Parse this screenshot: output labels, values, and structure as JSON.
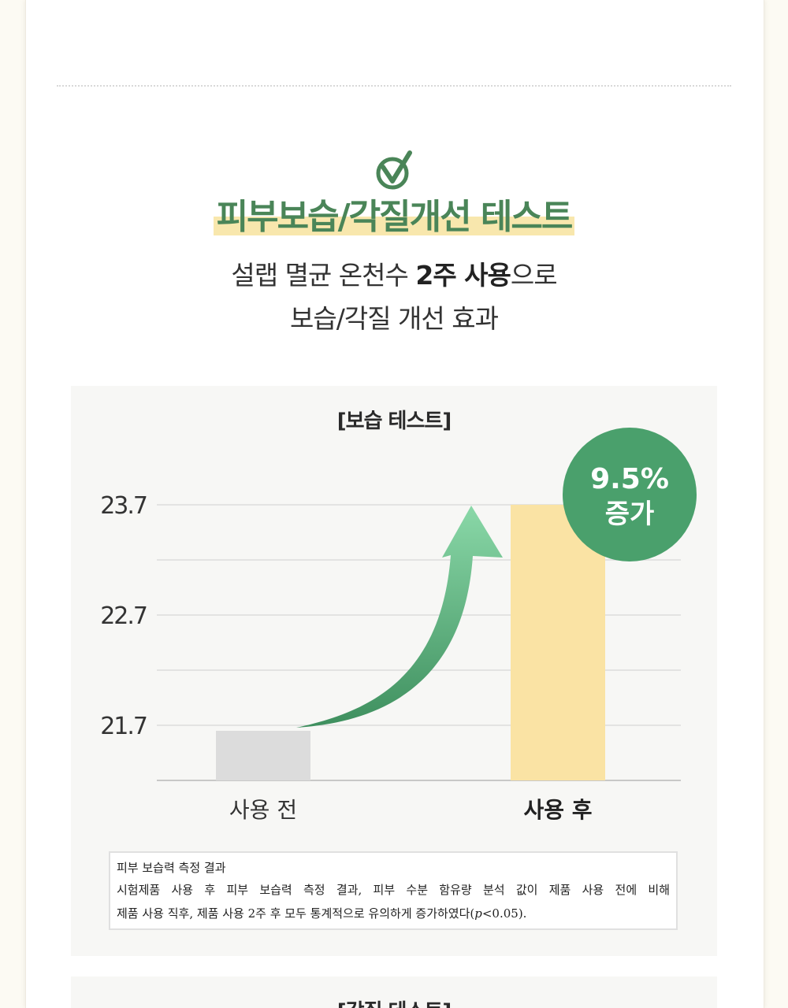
{
  "headline": "피부보습/각질개선 테스트",
  "subtitle": {
    "line1_pre": "설랩 멸균 온천수 ",
    "line1_bold": "2주 사용",
    "line1_post": "으로",
    "line2": "보습/각질 개선 효과"
  },
  "panel_title": "[보습 테스트]",
  "next_panel_title": "[각질 테스트]",
  "badge": {
    "line1": "9.5%",
    "line2": "증가"
  },
  "note": {
    "heading": "피부 보습력 측정 결과",
    "line1": "시험제품 사용 후 피부 보습력 측정 결과, 피부 수분 함유량 분석 값이 제품 사용 전에 비해",
    "line2_pre": "제품 사용 직후, 제품 사용 2주 후 모두 통계적으로 유의하게 증가하였다(",
    "line2_p": "p",
    "line2_post": "<0.05)."
  },
  "colors": {
    "brand_green": "#4a8558",
    "badge_green": "#4aa06c",
    "bar_before": "#dcdcdc",
    "bar_after": "#fae3a4",
    "highlight": "#f8e7ad",
    "arrow_top": "#8ad8a8",
    "arrow_bottom": "#3e8f5e"
  },
  "icons": [
    "check-circle-icon",
    "growth-arrow-icon"
  ],
  "chart_data": {
    "type": "bar",
    "title": "[보습 테스트]",
    "categories": [
      "사용 전",
      "사용 후"
    ],
    "values": [
      21.65,
      23.7
    ],
    "yticks": [
      "23.7",
      "22.7",
      "21.7"
    ],
    "ytick_values": [
      23.7,
      22.7,
      21.7
    ],
    "ylim": [
      21.2,
      23.7
    ],
    "grid": true,
    "annotation": "9.5% 증가"
  }
}
